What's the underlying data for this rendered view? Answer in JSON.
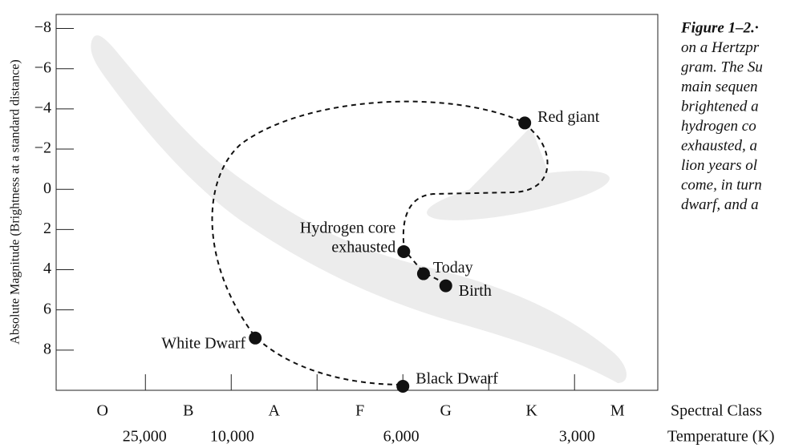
{
  "chart_data": {
    "type": "scatter",
    "ylabel": "Absolute Magnitude (Brightness at a standard distance)",
    "xlabel": "Spectral Class",
    "x2label": "Temperature (K)",
    "categories": [
      "O",
      "B",
      "A",
      "F",
      "G",
      "K",
      "M"
    ],
    "xlim": [
      -0.54,
      6.47
    ],
    "xticks": [
      0.5,
      1.5,
      2.5,
      3.5,
      4.5,
      5.5
    ],
    "x2ticks": [
      {
        "value": 0.49,
        "label": "25,000"
      },
      {
        "value": 1.51,
        "label": "10,000"
      },
      {
        "value": 3.48,
        "label": "6,000"
      },
      {
        "value": 5.53,
        "label": "3,000"
      }
    ],
    "ylim": [
      10,
      -8.7
    ],
    "yticks": [
      {
        "value": -8,
        "label": "−8"
      },
      {
        "value": -6,
        "label": "−6"
      },
      {
        "value": -4,
        "label": "−4"
      },
      {
        "value": -2,
        "label": "−2"
      },
      0,
      2,
      4,
      6,
      8
    ],
    "color": "#111111",
    "points": [
      {
        "label": [
          "Red giant"
        ],
        "x": 4.92,
        "y": -3.3
      },
      {
        "label": [
          "Hydrogen core",
          "exhausted"
        ],
        "x": 3.51,
        "y": 3.1
      },
      {
        "label": [
          "Today"
        ],
        "x": 3.74,
        "y": 4.2
      },
      {
        "label": [
          "Birth"
        ],
        "x": 4.0,
        "y": 4.8
      },
      {
        "label": [
          "White Dwarf"
        ],
        "x": 1.78,
        "y": 7.4
      },
      {
        "label": [
          "Black Dwarf"
        ],
        "x": 3.5,
        "y": 9.8
      }
    ],
    "caption": [
      "Figure 1–2.·",
      "on a Hertzpr",
      "gram. The Su",
      "main sequen",
      "brightened a",
      "hydrogen co",
      "exhausted, a",
      "lion years ol",
      "come, in turn",
      "dwarf, and a"
    ]
  }
}
